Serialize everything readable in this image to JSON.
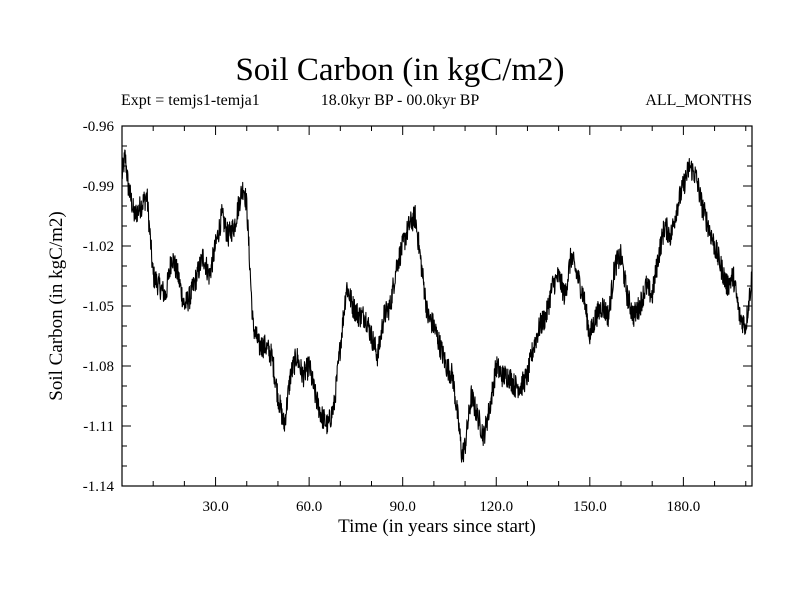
{
  "chart_data": {
    "type": "line",
    "title": "Soil Carbon (in kgC/m2)",
    "left_label": "Expt = temjs1-temja1",
    "center_label": "18.0kyr BP - 00.0kyr BP",
    "right_label": "ALL_MONTHS",
    "xlabel": "Time (in years since start)",
    "ylabel": "Soil Carbon (in kgC/m2)",
    "xlim": [
      0,
      202
    ],
    "ylim": [
      -1.14,
      -0.96
    ],
    "x_ticks": [
      30,
      60,
      90,
      120,
      150,
      180
    ],
    "x_tick_labels": [
      "30.0",
      "60.0",
      "90.0",
      "120.0",
      "150.0",
      "180.0"
    ],
    "y_ticks": [
      -0.96,
      -0.99,
      -1.02,
      -1.05,
      -1.08,
      -1.11,
      -1.14
    ],
    "y_tick_labels": [
      "-0.96",
      "-0.99",
      "-1.02",
      "-1.05",
      "-1.08",
      "-1.11",
      "-1.14"
    ],
    "series": [
      {
        "name": "Soil Carbon",
        "color": "#000000",
        "noise_amplitude": 0.006,
        "x": [
          0,
          1,
          2,
          4,
          6,
          8,
          10,
          12,
          14,
          16,
          18,
          20,
          22,
          24,
          26,
          28,
          30,
          32,
          34,
          36,
          38,
          39,
          40,
          42,
          44,
          46,
          48,
          50,
          52,
          54,
          56,
          58,
          60,
          62,
          64,
          66,
          68,
          70,
          72,
          74,
          76,
          78,
          80,
          82,
          84,
          86,
          88,
          90,
          92,
          94,
          96,
          98,
          100,
          102,
          104,
          106,
          108,
          109,
          110,
          112,
          114,
          116,
          118,
          120,
          122,
          124,
          126,
          128,
          130,
          132,
          134,
          136,
          138,
          140,
          142,
          144,
          146,
          148,
          150,
          152,
          154,
          156,
          158,
          160,
          162,
          164,
          166,
          168,
          170,
          172,
          174,
          176,
          178,
          180,
          182,
          184,
          186,
          188,
          190,
          192,
          194,
          196,
          198,
          200,
          202
        ],
        "values": [
          -0.985,
          -0.975,
          -0.99,
          -1.005,
          -1.0,
          -0.995,
          -1.035,
          -1.04,
          -1.045,
          -1.025,
          -1.035,
          -1.05,
          -1.045,
          -1.035,
          -1.025,
          -1.035,
          -1.02,
          -1.005,
          -1.015,
          -1.01,
          -0.995,
          -0.99,
          -1.0,
          -1.06,
          -1.07,
          -1.07,
          -1.075,
          -1.095,
          -1.11,
          -1.085,
          -1.075,
          -1.085,
          -1.08,
          -1.095,
          -1.105,
          -1.11,
          -1.1,
          -1.07,
          -1.04,
          -1.05,
          -1.055,
          -1.055,
          -1.065,
          -1.075,
          -1.055,
          -1.05,
          -1.03,
          -1.02,
          -1.01,
          -1.005,
          -1.03,
          -1.055,
          -1.06,
          -1.07,
          -1.08,
          -1.085,
          -1.11,
          -1.125,
          -1.12,
          -1.095,
          -1.105,
          -1.115,
          -1.1,
          -1.08,
          -1.085,
          -1.085,
          -1.09,
          -1.09,
          -1.085,
          -1.07,
          -1.06,
          -1.055,
          -1.04,
          -1.035,
          -1.045,
          -1.025,
          -1.035,
          -1.045,
          -1.065,
          -1.055,
          -1.05,
          -1.055,
          -1.03,
          -1.025,
          -1.045,
          -1.055,
          -1.05,
          -1.04,
          -1.045,
          -1.025,
          -1.01,
          -1.015,
          -1.0,
          -0.99,
          -0.98,
          -0.985,
          -1.0,
          -1.01,
          -1.02,
          -1.03,
          -1.04,
          -1.035,
          -1.055,
          -1.06,
          -1.035
        ]
      }
    ]
  }
}
